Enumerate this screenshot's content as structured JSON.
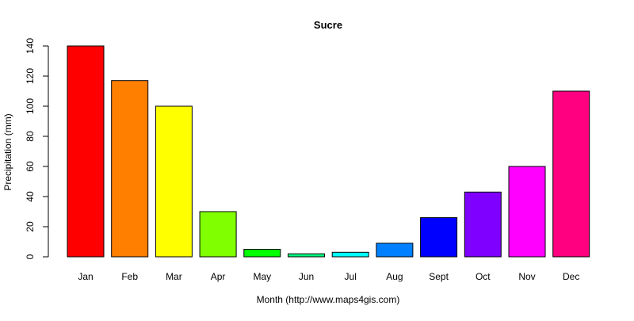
{
  "chart_data": {
    "type": "bar",
    "title": "Sucre",
    "xlabel": "Month (http://www.maps4gis.com)",
    "ylabel": "Precipitation (mm)",
    "categories": [
      "Jan",
      "Feb",
      "Mar",
      "Apr",
      "May",
      "Jun",
      "Jul",
      "Aug",
      "Sept",
      "Oct",
      "Nov",
      "Dec"
    ],
    "values": [
      140,
      117,
      100,
      30,
      5,
      2,
      3,
      9,
      26,
      43,
      60,
      110
    ],
    "colors": [
      "#FF0000",
      "#FF8000",
      "#FFFF00",
      "#80FF00",
      "#00FF00",
      "#00FF80",
      "#00FFFF",
      "#0080FF",
      "#0000FF",
      "#8000FF",
      "#FF00FF",
      "#FF0080"
    ],
    "ylim": [
      0,
      140
    ],
    "yticks": [
      0,
      20,
      40,
      60,
      80,
      100,
      120,
      140
    ],
    "grid": false,
    "bar_border": "#000000"
  }
}
